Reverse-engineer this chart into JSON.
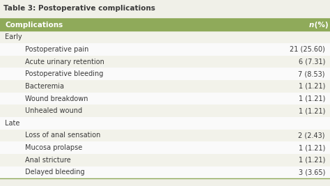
{
  "title": "Table 3: Postoperative complications",
  "header_col1": "Complications",
  "header_col2_italic": "n",
  "header_col2_rest": " (%)",
  "rows": [
    {
      "label": "Early",
      "value": "",
      "indent": 0
    },
    {
      "label": "Postoperative pain",
      "value": "21 (25.60)",
      "indent": 1
    },
    {
      "label": "Acute urinary retention",
      "value": "6 (7.31)",
      "indent": 1
    },
    {
      "label": "Postoperative bleeding",
      "value": "7 (8.53)",
      "indent": 1
    },
    {
      "label": "Bacteremia",
      "value": "1 (1.21)",
      "indent": 1
    },
    {
      "label": "Wound breakdown",
      "value": "1 (1.21)",
      "indent": 1
    },
    {
      "label": "Unhealed wound",
      "value": "1 (1.21)",
      "indent": 1
    },
    {
      "label": "Late",
      "value": "",
      "indent": 0
    },
    {
      "label": "Loss of anal sensation",
      "value": "2 (2.43)",
      "indent": 1
    },
    {
      "label": "Mucosa prolapse",
      "value": "1 (1.21)",
      "indent": 1
    },
    {
      "label": "Anal stricture",
      "value": "1 (1.21)",
      "indent": 1
    },
    {
      "label": "Delayed bleeding",
      "value": "3 (3.65)",
      "indent": 1
    }
  ],
  "title_color": "#3a3a3a",
  "header_bg": "#8faa5a",
  "header_text_color": "#ffffff",
  "border_color": "#8faa5a",
  "text_color": "#3a3a3a",
  "bg_color": "#f0f0e8",
  "row_bg_light": "#f2f2ea",
  "row_bg_white": "#fafafa",
  "indent_amount": 0.06,
  "title_fontsize": 7.5,
  "header_fontsize": 7.5,
  "row_fontsize": 7.0
}
